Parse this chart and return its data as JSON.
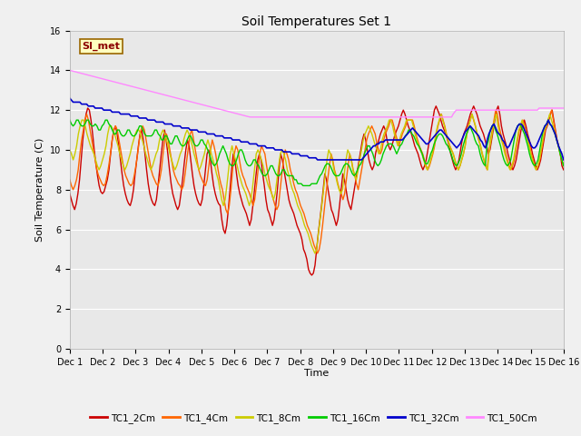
{
  "title": "Soil Temperatures Set 1",
  "xlabel": "Time",
  "ylabel": "Soil Temperature (C)",
  "ylim": [
    0,
    16
  ],
  "yticks": [
    0,
    2,
    4,
    6,
    8,
    10,
    12,
    14,
    16
  ],
  "bg_color": "#e8e8e8",
  "fig_color": "#f0f0f0",
  "legend_label": "SI_met",
  "series_names": [
    "TC1_2Cm",
    "TC1_4Cm",
    "TC1_8Cm",
    "TC1_16Cm",
    "TC1_32Cm",
    "TC1_50Cm"
  ],
  "series_colors": [
    "#cc0000",
    "#ff6600",
    "#cccc00",
    "#00cc00",
    "#0000cc",
    "#ff88ff"
  ],
  "series_lw": [
    1.0,
    1.0,
    1.0,
    1.0,
    1.2,
    1.0
  ],
  "xtick_labels": [
    "Dec 1",
    "Dec 2",
    "Dec 3",
    "Dec 4",
    "Dec 5",
    "Dec 6",
    "Dec 7",
    "Dec 8",
    "Dec 9",
    "Dec 10",
    "Dec 11",
    "Dec 12",
    "Dec 13",
    "Dec 14",
    "Dec 15",
    "Dec 16"
  ],
  "TC1_2Cm": [
    7.8,
    7.5,
    7.2,
    7.0,
    7.3,
    7.8,
    8.5,
    9.5,
    10.5,
    11.2,
    11.8,
    12.1,
    12.0,
    11.5,
    10.8,
    10.0,
    9.3,
    8.7,
    8.2,
    7.9,
    7.8,
    7.9,
    8.2,
    8.5,
    9.0,
    9.8,
    10.5,
    11.0,
    11.2,
    10.8,
    10.2,
    9.5,
    8.8,
    8.2,
    7.8,
    7.5,
    7.3,
    7.2,
    7.5,
    8.0,
    8.8,
    9.5,
    10.2,
    10.8,
    11.0,
    10.5,
    9.8,
    9.0,
    8.3,
    7.8,
    7.5,
    7.3,
    7.2,
    7.5,
    8.2,
    9.0,
    9.8,
    10.5,
    11.0,
    10.5,
    9.8,
    9.0,
    8.3,
    7.8,
    7.5,
    7.2,
    7.0,
    7.2,
    7.8,
    8.5,
    9.3,
    10.0,
    10.5,
    10.2,
    9.5,
    8.8,
    8.2,
    7.8,
    7.5,
    7.3,
    7.2,
    7.5,
    8.2,
    9.0,
    9.8,
    10.0,
    9.5,
    8.8,
    8.2,
    7.8,
    7.5,
    7.3,
    7.2,
    6.5,
    6.0,
    5.8,
    6.2,
    7.0,
    8.0,
    9.0,
    9.8,
    9.5,
    8.8,
    8.2,
    7.8,
    7.5,
    7.2,
    7.0,
    6.8,
    6.5,
    6.2,
    6.5,
    7.2,
    8.0,
    8.8,
    9.5,
    9.8,
    9.5,
    8.8,
    8.2,
    7.5,
    7.0,
    6.8,
    6.5,
    6.2,
    6.5,
    7.2,
    8.0,
    9.0,
    9.8,
    9.5,
    9.0,
    8.5,
    8.0,
    7.5,
    7.2,
    7.0,
    6.8,
    6.5,
    6.2,
    6.0,
    5.8,
    5.5,
    5.0,
    4.8,
    4.5,
    4.0,
    3.8,
    3.7,
    3.8,
    4.2,
    5.0,
    5.8,
    6.5,
    7.2,
    8.0,
    8.8,
    8.5,
    8.0,
    7.5,
    7.0,
    6.8,
    6.5,
    6.2,
    6.5,
    7.2,
    8.0,
    8.8,
    8.5,
    8.0,
    7.5,
    7.2,
    7.0,
    7.5,
    8.0,
    8.5,
    9.0,
    9.5,
    10.0,
    10.5,
    10.8,
    10.5,
    10.0,
    9.5,
    9.2,
    9.0,
    9.2,
    9.8,
    10.2,
    10.5,
    10.8,
    11.0,
    11.2,
    11.0,
    10.5,
    10.2,
    10.0,
    10.2,
    10.5,
    10.8,
    11.0,
    11.2,
    11.5,
    11.8,
    12.0,
    11.8,
    11.5,
    11.2,
    11.0,
    10.8,
    10.5,
    10.2,
    10.0,
    9.8,
    9.5,
    9.2,
    9.0,
    9.2,
    9.5,
    10.0,
    10.5,
    11.0,
    11.5,
    12.0,
    12.2,
    12.0,
    11.8,
    11.5,
    11.2,
    11.0,
    10.8,
    10.5,
    10.2,
    9.8,
    9.5,
    9.2,
    9.0,
    9.2,
    9.5,
    10.0,
    10.5,
    10.8,
    11.0,
    11.2,
    11.5,
    11.8,
    12.0,
    12.2,
    12.0,
    11.8,
    11.5,
    11.2,
    11.0,
    10.8,
    10.5,
    10.2,
    9.8,
    10.0,
    10.5,
    11.0,
    11.5,
    12.0,
    12.2,
    11.8,
    11.2,
    10.8,
    10.5,
    10.2,
    9.8,
    9.5,
    9.2,
    9.0,
    9.2,
    9.5,
    10.0,
    10.5,
    11.0,
    11.2,
    11.5,
    11.2,
    10.8,
    10.5,
    10.2,
    9.8,
    9.5,
    9.2,
    9.0,
    9.2,
    9.5,
    10.0,
    10.5,
    11.0,
    11.2,
    11.5,
    11.8,
    12.0,
    11.5,
    11.0,
    10.5,
    10.2,
    9.8,
    9.2,
    9.0
  ],
  "TC1_4Cm": [
    8.5,
    8.2,
    8.0,
    8.2,
    8.5,
    9.0,
    9.8,
    10.5,
    11.0,
    11.5,
    11.8,
    11.5,
    11.0,
    10.5,
    10.0,
    9.5,
    9.0,
    8.7,
    8.5,
    8.3,
    8.2,
    8.3,
    8.7,
    9.2,
    9.8,
    10.5,
    11.0,
    11.2,
    11.0,
    10.5,
    10.0,
    9.5,
    9.0,
    8.7,
    8.5,
    8.3,
    8.2,
    8.3,
    8.7,
    9.2,
    9.8,
    10.5,
    11.0,
    11.2,
    11.0,
    10.5,
    10.0,
    9.5,
    9.0,
    8.7,
    8.5,
    8.3,
    8.2,
    8.5,
    9.0,
    9.8,
    10.5,
    10.8,
    10.5,
    10.0,
    9.5,
    9.0,
    8.7,
    8.5,
    8.3,
    8.2,
    8.0,
    8.2,
    8.8,
    9.5,
    10.2,
    10.8,
    11.0,
    10.5,
    10.0,
    9.5,
    9.0,
    8.7,
    8.5,
    8.3,
    8.2,
    8.5,
    9.2,
    10.0,
    10.5,
    10.2,
    9.8,
    9.2,
    8.7,
    8.3,
    8.0,
    7.5,
    7.0,
    6.8,
    7.2,
    8.0,
    9.0,
    9.8,
    10.2,
    10.0,
    9.5,
    9.0,
    8.7,
    8.5,
    8.2,
    8.0,
    7.8,
    7.5,
    7.2,
    7.5,
    8.2,
    9.0,
    9.8,
    10.2,
    10.0,
    9.8,
    9.2,
    8.7,
    8.2,
    7.8,
    7.5,
    7.2,
    7.0,
    7.2,
    8.0,
    8.8,
    9.5,
    10.0,
    9.8,
    9.5,
    9.0,
    8.7,
    8.3,
    8.0,
    7.8,
    7.5,
    7.2,
    7.0,
    6.8,
    6.5,
    6.2,
    6.0,
    5.8,
    5.5,
    5.2,
    5.0,
    4.8,
    5.0,
    5.5,
    6.2,
    7.0,
    7.8,
    8.5,
    9.2,
    9.8,
    9.5,
    9.0,
    8.7,
    8.3,
    8.0,
    7.8,
    7.5,
    7.8,
    8.5,
    9.2,
    9.8,
    9.5,
    9.0,
    8.7,
    8.3,
    8.0,
    8.5,
    9.0,
    9.5,
    10.0,
    10.5,
    10.8,
    11.0,
    11.2,
    11.0,
    10.8,
    10.3,
    10.0,
    9.8,
    10.0,
    10.5,
    10.8,
    11.0,
    11.2,
    11.5,
    11.5,
    11.2,
    10.8,
    10.5,
    10.2,
    10.5,
    10.8,
    11.0,
    11.2,
    11.5,
    11.5,
    11.5,
    11.5,
    11.2,
    10.8,
    10.5,
    10.2,
    10.0,
    9.8,
    9.5,
    9.2,
    9.0,
    9.2,
    9.5,
    9.8,
    10.2,
    10.8,
    11.2,
    11.5,
    11.8,
    11.5,
    11.2,
    10.8,
    10.5,
    10.2,
    10.0,
    9.8,
    9.5,
    9.2,
    9.0,
    9.2,
    9.5,
    9.8,
    10.2,
    10.8,
    11.2,
    11.5,
    11.8,
    11.5,
    11.2,
    10.8,
    10.5,
    10.2,
    9.8,
    9.5,
    9.2,
    9.0,
    10.0,
    10.5,
    11.0,
    11.5,
    12.0,
    11.8,
    11.2,
    10.8,
    10.5,
    10.2,
    9.8,
    9.5,
    9.2,
    9.0,
    9.2,
    9.5,
    10.0,
    10.5,
    11.0,
    11.2,
    11.5,
    11.2,
    10.8,
    10.5,
    10.2,
    9.8,
    9.5,
    9.2,
    9.0,
    9.2,
    9.5,
    10.0,
    10.5,
    11.0,
    11.2,
    11.5,
    11.8,
    12.0,
    11.5,
    11.0,
    10.5,
    10.2,
    9.8,
    9.5,
    9.2
  ],
  "TC1_8Cm": [
    10.0,
    9.8,
    9.5,
    9.8,
    10.2,
    10.8,
    11.2,
    11.5,
    11.5,
    11.2,
    10.8,
    10.5,
    10.2,
    10.0,
    9.8,
    9.5,
    9.2,
    9.0,
    9.2,
    9.5,
    9.8,
    10.2,
    10.8,
    11.2,
    11.2,
    11.0,
    10.8,
    10.5,
    10.2,
    9.8,
    9.5,
    9.2,
    9.0,
    9.2,
    9.5,
    9.8,
    10.2,
    10.5,
    10.8,
    11.0,
    11.0,
    10.8,
    10.5,
    10.2,
    9.8,
    9.5,
    9.2,
    9.0,
    9.2,
    9.5,
    9.8,
    10.0,
    10.5,
    10.8,
    11.0,
    10.8,
    10.5,
    10.2,
    9.8,
    9.5,
    9.2,
    9.0,
    9.2,
    9.5,
    9.8,
    10.0,
    10.5,
    10.8,
    11.0,
    10.8,
    10.5,
    10.2,
    9.8,
    9.5,
    9.2,
    9.0,
    9.2,
    9.5,
    9.8,
    10.2,
    10.5,
    10.2,
    9.8,
    9.5,
    9.2,
    8.8,
    8.5,
    8.0,
    7.5,
    7.2,
    7.5,
    8.2,
    9.0,
    9.8,
    10.2,
    9.8,
    9.5,
    9.2,
    8.8,
    8.5,
    8.2,
    8.0,
    7.8,
    7.5,
    7.2,
    7.5,
    8.2,
    9.0,
    9.8,
    10.0,
    9.8,
    9.5,
    9.2,
    8.8,
    8.5,
    8.2,
    8.0,
    7.8,
    7.5,
    7.8,
    8.5,
    9.2,
    9.8,
    10.0,
    9.8,
    9.5,
    9.0,
    8.7,
    8.3,
    8.0,
    7.8,
    7.5,
    7.2,
    7.0,
    6.8,
    6.5,
    6.2,
    6.0,
    5.8,
    5.5,
    5.2,
    5.0,
    4.8,
    5.0,
    5.8,
    6.5,
    7.2,
    8.0,
    8.8,
    9.5,
    10.0,
    9.8,
    9.5,
    9.0,
    8.7,
    8.3,
    8.0,
    7.8,
    8.0,
    8.8,
    9.5,
    10.0,
    9.8,
    9.5,
    9.0,
    8.7,
    8.5,
    9.0,
    9.5,
    10.0,
    10.5,
    10.8,
    11.0,
    11.2,
    11.0,
    10.8,
    10.5,
    10.2,
    10.0,
    9.8,
    10.0,
    10.5,
    10.8,
    11.0,
    11.2,
    11.5,
    11.5,
    11.2,
    10.8,
    10.5,
    10.2,
    10.5,
    10.8,
    11.0,
    11.2,
    11.5,
    11.5,
    11.5,
    11.5,
    11.2,
    10.8,
    10.5,
    10.2,
    10.0,
    9.8,
    9.5,
    9.2,
    9.0,
    9.2,
    9.5,
    9.8,
    10.2,
    10.8,
    11.2,
    11.5,
    11.8,
    11.5,
    11.2,
    10.8,
    10.5,
    10.2,
    10.0,
    9.8,
    9.5,
    9.2,
    9.0,
    9.2,
    9.5,
    9.8,
    10.2,
    10.8,
    11.2,
    11.5,
    11.8,
    11.5,
    11.2,
    10.8,
    10.5,
    10.2,
    9.8,
    9.5,
    9.2,
    9.0,
    10.0,
    10.5,
    11.0,
    11.5,
    11.8,
    11.2,
    10.8,
    10.5,
    10.2,
    9.8,
    9.5,
    9.2,
    9.0,
    9.2,
    9.5,
    10.0,
    10.5,
    11.0,
    11.2,
    11.5,
    11.2,
    10.8,
    10.5,
    10.2,
    9.8,
    9.5,
    9.2,
    9.0,
    9.2,
    9.5,
    10.0,
    10.5,
    11.0,
    11.2,
    11.5,
    11.8,
    11.5,
    11.2,
    10.8,
    10.5,
    10.2,
    9.8,
    9.5,
    9.2
  ],
  "TC1_16Cm": [
    11.5,
    11.3,
    11.2,
    11.3,
    11.5,
    11.5,
    11.3,
    11.2,
    11.2,
    11.3,
    11.5,
    11.5,
    11.3,
    11.2,
    11.2,
    11.3,
    11.2,
    11.0,
    11.0,
    11.2,
    11.3,
    11.5,
    11.5,
    11.3,
    11.2,
    11.0,
    10.8,
    10.8,
    11.0,
    11.0,
    10.8,
    10.7,
    10.7,
    10.8,
    11.0,
    11.0,
    10.8,
    10.7,
    10.7,
    10.8,
    11.0,
    11.2,
    11.2,
    11.0,
    10.8,
    10.7,
    10.7,
    10.7,
    10.7,
    10.8,
    11.0,
    11.0,
    10.8,
    10.7,
    10.5,
    10.5,
    10.7,
    10.7,
    10.5,
    10.3,
    10.3,
    10.5,
    10.7,
    10.7,
    10.5,
    10.3,
    10.2,
    10.2,
    10.3,
    10.5,
    10.7,
    10.7,
    10.5,
    10.3,
    10.2,
    10.2,
    10.3,
    10.5,
    10.5,
    10.3,
    10.2,
    10.0,
    9.8,
    9.5,
    9.3,
    9.2,
    9.3,
    9.5,
    9.8,
    10.0,
    10.2,
    10.0,
    9.8,
    9.5,
    9.3,
    9.2,
    9.2,
    9.3,
    9.5,
    9.8,
    10.0,
    10.0,
    9.8,
    9.5,
    9.3,
    9.2,
    9.2,
    9.3,
    9.5,
    9.5,
    9.3,
    9.2,
    9.0,
    8.8,
    8.7,
    8.7,
    8.8,
    9.0,
    9.2,
    9.2,
    9.0,
    8.8,
    8.7,
    8.7,
    8.8,
    9.0,
    9.0,
    8.8,
    8.7,
    8.7,
    8.7,
    8.7,
    8.5,
    8.5,
    8.3,
    8.3,
    8.3,
    8.2,
    8.2,
    8.2,
    8.2,
    8.2,
    8.3,
    8.3,
    8.3,
    8.3,
    8.5,
    8.7,
    8.8,
    9.0,
    9.2,
    9.3,
    9.3,
    9.2,
    9.0,
    8.8,
    8.7,
    8.7,
    8.7,
    8.8,
    9.0,
    9.2,
    9.3,
    9.3,
    9.2,
    9.0,
    8.8,
    8.7,
    8.8,
    9.0,
    9.2,
    9.3,
    9.5,
    9.8,
    10.0,
    10.2,
    10.2,
    10.0,
    9.8,
    9.5,
    9.3,
    9.2,
    9.3,
    9.5,
    9.8,
    10.0,
    10.2,
    10.3,
    10.3,
    10.3,
    10.2,
    10.0,
    9.8,
    10.0,
    10.2,
    10.3,
    10.5,
    10.7,
    10.8,
    11.0,
    11.0,
    10.8,
    10.7,
    10.5,
    10.3,
    10.2,
    10.0,
    9.8,
    9.5,
    9.3,
    9.3,
    9.5,
    9.8,
    10.0,
    10.3,
    10.5,
    10.7,
    10.8,
    10.8,
    10.7,
    10.5,
    10.3,
    10.2,
    10.0,
    9.8,
    9.5,
    9.3,
    9.2,
    9.3,
    9.5,
    9.8,
    10.2,
    10.5,
    10.8,
    11.0,
    11.2,
    11.0,
    10.8,
    10.5,
    10.3,
    10.2,
    9.8,
    9.5,
    9.3,
    9.2,
    10.2,
    10.5,
    11.0,
    11.2,
    11.3,
    11.0,
    10.8,
    10.5,
    10.2,
    9.8,
    9.5,
    9.3,
    9.2,
    9.3,
    9.5,
    10.0,
    10.5,
    11.0,
    11.2,
    11.3,
    11.2,
    11.0,
    10.8,
    10.5,
    10.2,
    9.8,
    9.5,
    9.3,
    9.2,
    9.3,
    9.5,
    10.0,
    10.5,
    11.0,
    11.2,
    11.3,
    11.5,
    11.3,
    11.2,
    11.0,
    10.8,
    10.5,
    10.2,
    9.8,
    9.5,
    9.2
  ],
  "TC1_32Cm": [
    12.6,
    12.5,
    12.4,
    12.4,
    12.4,
    12.4,
    12.4,
    12.3,
    12.3,
    12.3,
    12.3,
    12.2,
    12.2,
    12.2,
    12.2,
    12.1,
    12.1,
    12.1,
    12.1,
    12.1,
    12.0,
    12.0,
    12.0,
    12.0,
    12.0,
    11.9,
    11.9,
    11.9,
    11.9,
    11.9,
    11.8,
    11.8,
    11.8,
    11.8,
    11.8,
    11.8,
    11.7,
    11.7,
    11.7,
    11.7,
    11.7,
    11.6,
    11.6,
    11.6,
    11.6,
    11.6,
    11.5,
    11.5,
    11.5,
    11.5,
    11.5,
    11.4,
    11.4,
    11.4,
    11.4,
    11.4,
    11.3,
    11.3,
    11.3,
    11.3,
    11.3,
    11.2,
    11.2,
    11.2,
    11.2,
    11.2,
    11.1,
    11.1,
    11.1,
    11.1,
    11.1,
    11.0,
    11.0,
    11.0,
    11.0,
    11.0,
    10.9,
    10.9,
    10.9,
    10.9,
    10.9,
    10.8,
    10.8,
    10.8,
    10.8,
    10.8,
    10.7,
    10.7,
    10.7,
    10.7,
    10.7,
    10.6,
    10.6,
    10.6,
    10.6,
    10.6,
    10.5,
    10.5,
    10.5,
    10.5,
    10.5,
    10.4,
    10.4,
    10.4,
    10.4,
    10.4,
    10.3,
    10.3,
    10.3,
    10.3,
    10.3,
    10.2,
    10.2,
    10.2,
    10.2,
    10.2,
    10.1,
    10.1,
    10.1,
    10.1,
    10.1,
    10.0,
    10.0,
    10.0,
    10.0,
    10.0,
    9.9,
    9.9,
    9.9,
    9.9,
    9.9,
    9.8,
    9.8,
    9.8,
    9.8,
    9.8,
    9.7,
    9.7,
    9.7,
    9.7,
    9.7,
    9.6,
    9.6,
    9.6,
    9.6,
    9.6,
    9.5,
    9.5,
    9.5,
    9.5,
    9.5,
    9.5,
    9.5,
    9.5,
    9.5,
    9.5,
    9.5,
    9.5,
    9.5,
    9.5,
    9.5,
    9.5,
    9.5,
    9.5,
    9.5,
    9.5,
    9.5,
    9.5,
    9.5,
    9.5,
    9.5,
    9.5,
    9.5,
    9.6,
    9.7,
    9.8,
    9.9,
    10.0,
    10.1,
    10.2,
    10.2,
    10.3,
    10.3,
    10.4,
    10.4,
    10.4,
    10.5,
    10.5,
    10.5,
    10.5,
    10.5,
    10.5,
    10.5,
    10.5,
    10.5,
    10.5,
    10.5,
    10.6,
    10.7,
    10.8,
    10.9,
    11.0,
    11.1,
    11.0,
    10.9,
    10.8,
    10.7,
    10.6,
    10.5,
    10.4,
    10.3,
    10.3,
    10.4,
    10.5,
    10.6,
    10.7,
    10.8,
    10.9,
    11.0,
    11.0,
    10.9,
    10.8,
    10.7,
    10.6,
    10.5,
    10.4,
    10.3,
    10.2,
    10.1,
    10.2,
    10.3,
    10.5,
    10.7,
    10.9,
    11.0,
    11.1,
    11.2,
    11.1,
    11.0,
    10.9,
    10.8,
    10.7,
    10.5,
    10.4,
    10.2,
    10.1,
    10.5,
    10.8,
    11.0,
    11.2,
    11.3,
    11.1,
    10.9,
    10.8,
    10.7,
    10.5,
    10.4,
    10.2,
    10.1,
    10.2,
    10.4,
    10.6,
    10.8,
    11.0,
    11.2,
    11.3,
    11.3,
    11.2,
    11.0,
    10.8,
    10.6,
    10.4,
    10.2,
    10.1,
    10.1,
    10.2,
    10.4,
    10.6,
    10.8,
    11.0,
    11.2,
    11.3,
    11.5,
    11.3,
    11.2,
    11.0,
    10.8,
    10.5,
    10.2,
    10.0,
    9.8,
    9.5
  ],
  "TC1_50Cm": [
    14.0,
    13.98,
    13.96,
    13.94,
    13.92,
    13.9,
    13.88,
    13.86,
    13.84,
    13.82,
    13.8,
    13.78,
    13.76,
    13.74,
    13.72,
    13.7,
    13.68,
    13.66,
    13.64,
    13.62,
    13.6,
    13.58,
    13.56,
    13.54,
    13.52,
    13.5,
    13.48,
    13.46,
    13.44,
    13.42,
    13.4,
    13.38,
    13.36,
    13.34,
    13.32,
    13.3,
    13.28,
    13.26,
    13.24,
    13.22,
    13.2,
    13.18,
    13.16,
    13.14,
    13.12,
    13.1,
    13.08,
    13.06,
    13.04,
    13.02,
    13.0,
    12.98,
    12.96,
    12.94,
    12.92,
    12.9,
    12.88,
    12.86,
    12.84,
    12.82,
    12.8,
    12.78,
    12.76,
    12.74,
    12.72,
    12.7,
    12.68,
    12.66,
    12.64,
    12.62,
    12.6,
    12.58,
    12.56,
    12.54,
    12.52,
    12.5,
    12.48,
    12.46,
    12.44,
    12.42,
    12.4,
    12.38,
    12.36,
    12.34,
    12.32,
    12.3,
    12.28,
    12.26,
    12.24,
    12.22,
    12.2,
    12.18,
    12.16,
    12.14,
    12.12,
    12.1,
    12.08,
    12.06,
    12.04,
    12.02,
    12.0,
    11.98,
    11.96,
    11.94,
    11.92,
    11.9,
    11.88,
    11.86,
    11.84,
    11.82,
    11.8,
    11.78,
    11.76,
    11.74,
    11.72,
    11.7,
    11.68,
    11.66,
    11.65,
    11.65,
    11.65,
    11.65,
    11.65,
    11.65,
    11.65,
    11.65,
    11.65,
    11.65,
    11.65,
    11.65,
    11.65,
    11.65,
    11.65,
    11.65,
    11.65,
    11.65,
    11.65,
    11.65,
    11.65,
    11.65,
    11.65,
    11.65,
    11.65,
    11.65,
    11.65,
    11.65,
    11.65,
    11.65,
    11.65,
    11.65,
    11.65,
    11.65,
    11.65,
    11.65,
    11.65,
    11.65,
    11.65,
    11.65,
    11.65,
    11.65,
    11.65,
    11.65,
    11.65,
    11.65,
    11.65,
    11.65,
    11.65,
    11.65,
    11.65,
    11.65,
    11.65,
    11.65,
    11.65,
    11.65,
    11.65,
    11.65,
    11.65,
    11.65,
    11.65,
    11.65,
    11.65,
    11.65,
    11.65,
    11.65,
    11.65,
    11.65,
    11.65,
    11.65,
    11.65,
    11.65,
    11.65,
    11.65,
    11.65,
    11.65,
    11.65,
    11.65,
    11.65,
    11.65,
    11.65,
    11.65,
    11.65,
    11.65,
    11.65,
    11.65,
    11.65,
    11.65,
    11.65,
    11.65,
    11.65,
    11.65,
    11.65,
    11.65,
    11.65,
    11.65,
    11.65,
    11.65,
    11.65,
    11.65,
    11.65,
    11.65,
    11.65,
    11.65,
    11.65,
    11.65,
    11.65,
    11.65,
    11.65,
    11.65,
    11.65,
    11.65,
    11.65,
    11.65,
    11.65,
    11.65,
    11.65,
    11.65,
    11.65,
    11.65,
    11.65,
    11.65,
    11.65,
    11.65,
    11.65,
    11.65,
    11.65,
    11.65,
    11.65,
    11.65,
    11.65,
    11.65,
    11.8,
    11.9,
    12.0,
    12.0,
    12.0,
    12.0,
    12.0,
    12.0,
    12.0,
    12.0,
    12.0,
    12.0,
    12.0,
    12.0,
    12.0,
    12.0,
    12.0,
    12.0,
    12.0,
    12.0,
    12.0,
    12.0,
    12.0,
    12.0,
    12.0,
    12.0,
    12.0,
    12.0,
    12.0,
    12.0,
    12.0,
    12.0,
    12.0,
    12.0,
    12.0,
    12.0,
    12.0,
    12.0,
    12.0,
    12.0,
    12.0,
    12.0,
    12.0,
    12.0,
    12.0,
    12.0,
    12.0,
    12.0,
    12.0,
    12.0,
    12.0,
    12.0,
    12.0,
    12.0,
    12.0,
    12.0,
    12.1,
    12.1,
    12.1,
    12.1,
    12.1,
    12.1,
    12.1,
    12.1,
    12.1,
    12.1,
    12.1,
    12.1,
    12.1,
    12.1,
    12.1,
    12.1,
    12.1
  ]
}
